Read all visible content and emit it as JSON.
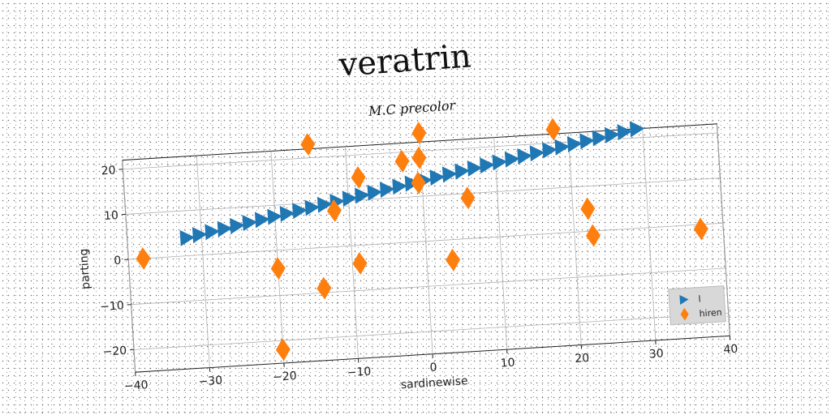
{
  "chart_data": {
    "type": "scatter",
    "title": "veratrin",
    "subtitle": "M.C precolor",
    "xlabel": "sardinewise",
    "ylabel": "parting",
    "xlim": [
      -40,
      40
    ],
    "ylim": [
      -25,
      22
    ],
    "x_ticks": [
      -40,
      -30,
      -20,
      -10,
      0,
      10,
      20,
      30,
      40
    ],
    "y_ticks": [
      -20,
      -10,
      0,
      10,
      20
    ],
    "grid": true,
    "legend_position": "lower-right",
    "series": [
      {
        "name": "l",
        "marker": "triangle-right",
        "color": "#1f77b4",
        "x": [
          -32.0,
          -30.3,
          -28.6,
          -26.9,
          -25.2,
          -23.5,
          -21.8,
          -20.1,
          -18.4,
          -16.7,
          -15.0,
          -13.3,
          -11.6,
          -9.9,
          -8.2,
          -6.5,
          -4.8,
          -3.1,
          -1.4,
          0.3,
          2.0,
          3.7,
          5.4,
          7.1,
          8.8,
          10.5,
          12.2,
          13.9,
          15.6,
          17.3,
          19.0,
          20.7,
          22.4,
          24.1,
          25.8,
          27.5,
          29.2
        ],
        "y": [
          4.0,
          4.5,
          5.0,
          5.5,
          6.0,
          6.5,
          7.0,
          7.5,
          8.0,
          8.5,
          9.0,
          9.5,
          10.0,
          10.5,
          11.0,
          11.5,
          12.0,
          12.5,
          13.0,
          13.5,
          14.0,
          14.5,
          15.0,
          15.5,
          16.0,
          16.5,
          17.0,
          17.5,
          18.0,
          18.5,
          19.0,
          19.5,
          20.0,
          20.5,
          21.0,
          21.5,
          22.0
        ]
      },
      {
        "name": "hiren",
        "marker": "diamond",
        "color": "#ff7f0e",
        "x": [
          -38,
          -15,
          -12,
          -20,
          -14,
          -8.5,
          -9,
          -2.5,
          0,
          -0.2,
          -0.5,
          3.5,
          6,
          18,
          22,
          22.5,
          37,
          -20
        ],
        "y": [
          0,
          23,
          8,
          -4,
          -9,
          15,
          -4,
          18,
          24,
          18.5,
          13,
          -4.5,
          9,
          23,
          5,
          -1,
          -1,
          -22
        ]
      }
    ]
  }
}
